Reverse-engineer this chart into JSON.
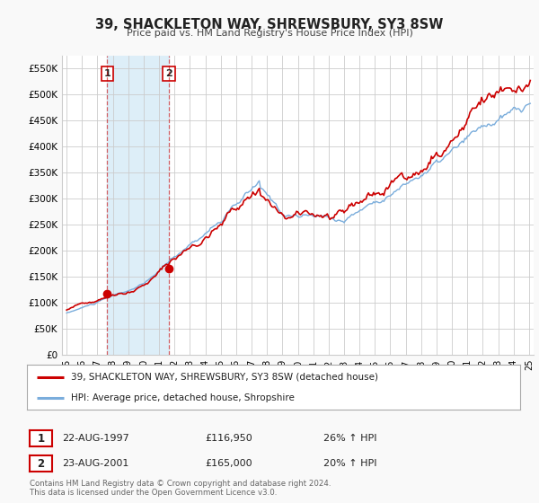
{
  "title": "39, SHACKLETON WAY, SHREWSBURY, SY3 8SW",
  "subtitle": "Price paid vs. HM Land Registry's House Price Index (HPI)",
  "ylim": [
    0,
    575000
  ],
  "yticks": [
    0,
    50000,
    100000,
    150000,
    200000,
    250000,
    300000,
    350000,
    400000,
    450000,
    500000,
    550000
  ],
  "ytick_labels": [
    "£0",
    "£50K",
    "£100K",
    "£150K",
    "£200K",
    "£250K",
    "£300K",
    "£350K",
    "£400K",
    "£450K",
    "£500K",
    "£550K"
  ],
  "xlim_start": 1994.7,
  "xlim_end": 2025.3,
  "sale1_date": 1997.64,
  "sale1_price": 116950,
  "sale1_label": "1",
  "sale1_text": "22-AUG-1997",
  "sale1_amount": "£116,950",
  "sale1_hpi": "26% ↑ HPI",
  "sale2_date": 2001.64,
  "sale2_price": 165000,
  "sale2_label": "2",
  "sale2_text": "23-AUG-2001",
  "sale2_amount": "£165,000",
  "sale2_hpi": "20% ↑ HPI",
  "line1_color": "#cc0000",
  "line2_color": "#7aaddc",
  "shading_color": "#ddeef8",
  "legend_label1": "39, SHACKLETON WAY, SHREWSBURY, SY3 8SW (detached house)",
  "legend_label2": "HPI: Average price, detached house, Shropshire",
  "footer1": "Contains HM Land Registry data © Crown copyright and database right 2024.",
  "footer2": "This data is licensed under the Open Government Licence v3.0.",
  "bg_color": "#f9f9f9",
  "plot_bg_color": "#ffffff",
  "grid_color": "#cccccc"
}
